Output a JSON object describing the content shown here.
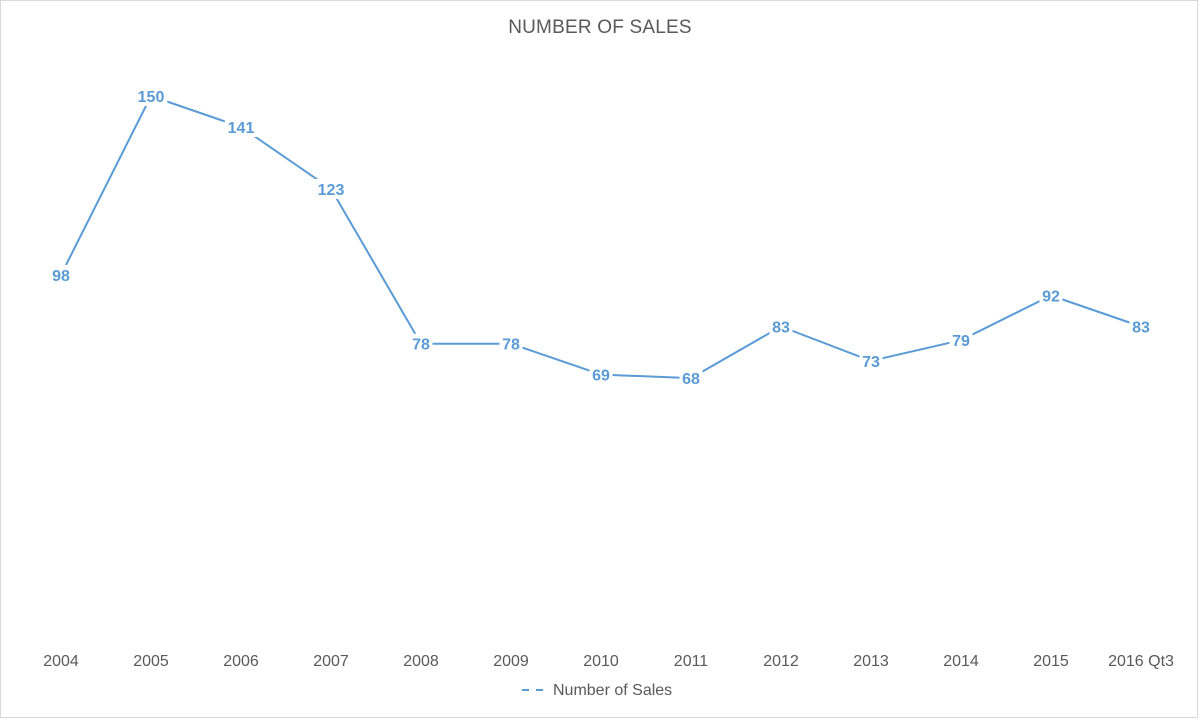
{
  "chart_data": {
    "type": "line",
    "title": "NUMBER OF SALES",
    "categories": [
      "2004",
      "2005",
      "2006",
      "2007",
      "2008",
      "2009",
      "2010",
      "2011",
      "2012",
      "2013",
      "2014",
      "2015",
      "2016 Qt3"
    ],
    "series": [
      {
        "name": "Number of Sales",
        "values": [
          98,
          150,
          141,
          123,
          78,
          78,
          69,
          68,
          83,
          73,
          79,
          92,
          83
        ],
        "color": "#5b9bd5"
      }
    ],
    "xlabel": "",
    "ylabel": "",
    "ylim": [
      0,
      160
    ],
    "grid": false,
    "legend": "bottom",
    "data_labels": true
  }
}
